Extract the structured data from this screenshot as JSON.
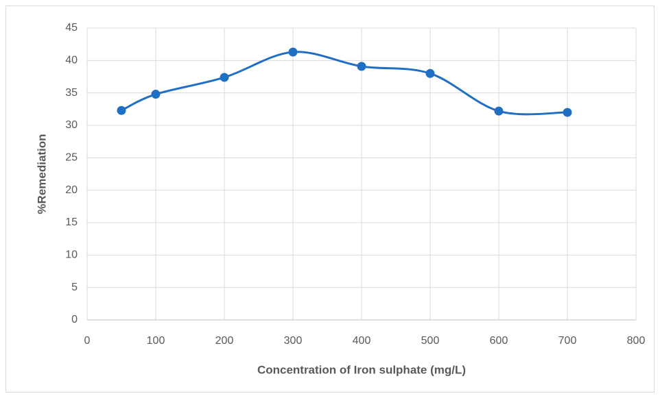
{
  "chart_data": {
    "type": "scatter",
    "smooth": true,
    "markers": true,
    "xlabel": "Concentration of Iron sulphate (mg/L)",
    "ylabel": "%Remediation",
    "x": [
      50,
      100,
      200,
      300,
      400,
      500,
      600,
      700
    ],
    "values": [
      32.3,
      34.8,
      37.4,
      41.3,
      39.1,
      38.0,
      32.2,
      32.0
    ],
    "color": "#1f6fc5",
    "xlim": [
      0,
      800
    ],
    "xticks": [
      0,
      100,
      200,
      300,
      400,
      500,
      600,
      700,
      800
    ],
    "ylim": [
      0,
      45
    ],
    "yticks": [
      0,
      5,
      10,
      15,
      20,
      25,
      30,
      35,
      40,
      45
    ],
    "grid": true
  }
}
